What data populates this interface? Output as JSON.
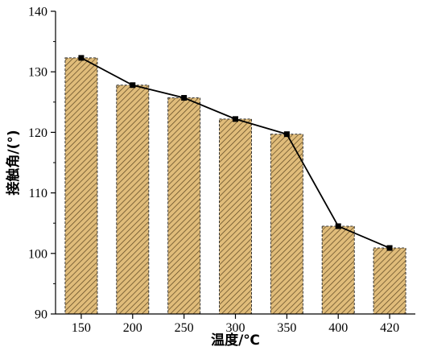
{
  "chart_data": {
    "type": "bar",
    "overlay": "line",
    "categories": [
      "150",
      "200",
      "250",
      "300",
      "350",
      "400",
      "420"
    ],
    "values": [
      132.3,
      127.8,
      125.7,
      122.2,
      119.7,
      104.5,
      100.9
    ],
    "xlabel": "温度/℃",
    "ylabel": "接触角/(°)",
    "ylim": [
      90,
      140
    ],
    "yticks": [
      90,
      100,
      110,
      120,
      130,
      140
    ],
    "grid": false,
    "legend": "none",
    "bar_fill": "#e0bc7a",
    "bar_hatch": "#5a4420",
    "bar_edge": "#333333",
    "line_color": "#000000",
    "marker": "square"
  }
}
